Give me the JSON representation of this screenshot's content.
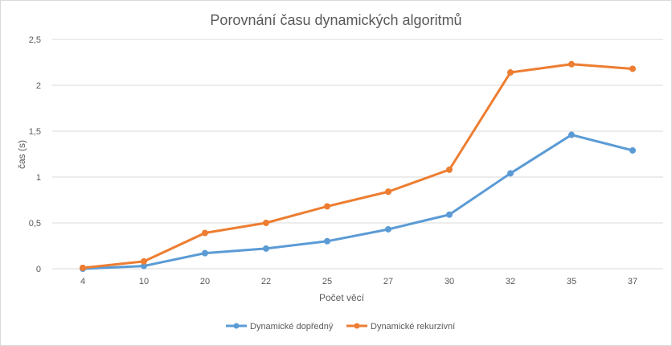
{
  "chart_data": {
    "type": "line",
    "title": "Porovnání času dynamických algoritmů",
    "xlabel": "Počet věcí",
    "ylabel": "čas (s)",
    "categories": [
      "4",
      "10",
      "20",
      "22",
      "25",
      "27",
      "30",
      "32",
      "35",
      "37"
    ],
    "ylim": [
      0,
      2.5
    ],
    "yticks": [
      "0",
      "0,5",
      "1",
      "1,5",
      "2",
      "2,5"
    ],
    "grid": true,
    "legend_position": "bottom",
    "series": [
      {
        "name": "Dynamické dopředný",
        "color": "#5b9bd5",
        "values": [
          0.0,
          0.03,
          0.17,
          0.22,
          0.3,
          0.43,
          0.59,
          1.04,
          1.46,
          1.29
        ]
      },
      {
        "name": "Dynamické rekurzivní",
        "color": "#ed7d31",
        "values": [
          0.01,
          0.08,
          0.39,
          0.5,
          0.68,
          0.84,
          1.08,
          2.14,
          2.23,
          2.18
        ]
      }
    ]
  }
}
